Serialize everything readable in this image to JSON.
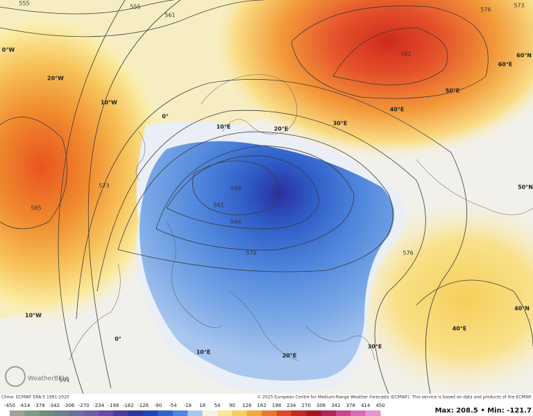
{
  "map": {
    "contour_labels": [
      "555",
      "555",
      "561",
      "573",
      "585",
      "561",
      "564",
      "570",
      "576",
      "582",
      "576",
      "573",
      "591",
      "588"
    ],
    "grid_labels": [
      "0°W",
      "20°W",
      "10°W",
      "0°",
      "10°E",
      "20°E",
      "30°E",
      "40°E",
      "50°E",
      "60°E",
      "60°N",
      "50°N",
      "40°N",
      "40°E",
      "30°E",
      "20°E",
      "10°E",
      "0°",
      "10°W"
    ],
    "watermark": "WeatherBELL"
  },
  "footer": {
    "climo": "Clima: ECMWF ERA-5 1991-2020",
    "copyright": "© 2025 European Centre for Medium-Range Weather Forecasts (ECMWF). This service is based on data and products of the ECMWF"
  },
  "colorbar": {
    "ticks": [
      -450,
      -414,
      -378,
      -342,
      -306,
      -270,
      -234,
      -198,
      -162,
      -126,
      -90,
      -54,
      -18,
      18,
      54,
      90,
      126,
      162,
      198,
      234,
      270,
      306,
      342,
      378,
      414,
      450
    ],
    "colors": [
      "#9aa39a",
      "#7f9a86",
      "#6b8f7a",
      "#6a7f8f",
      "#6a6fa0",
      "#6f5aa8",
      "#6a46a8",
      "#4a3aa0",
      "#2a35a0",
      "#1f44b8",
      "#2f62cc",
      "#4f86dc",
      "#a9c6ee",
      "#f7f3dc",
      "#f8e79a",
      "#f6cf5c",
      "#f2a83a",
      "#ea7a2a",
      "#dc4a22",
      "#c4261c",
      "#a8141c",
      "#b42458",
      "#c8468c",
      "#d66cb4",
      "#e496d4"
    ]
  },
  "stats": {
    "max_label": "Max:",
    "max": 208.5,
    "separator": "•",
    "min_label": "Min:",
    "min": -121.7
  }
}
